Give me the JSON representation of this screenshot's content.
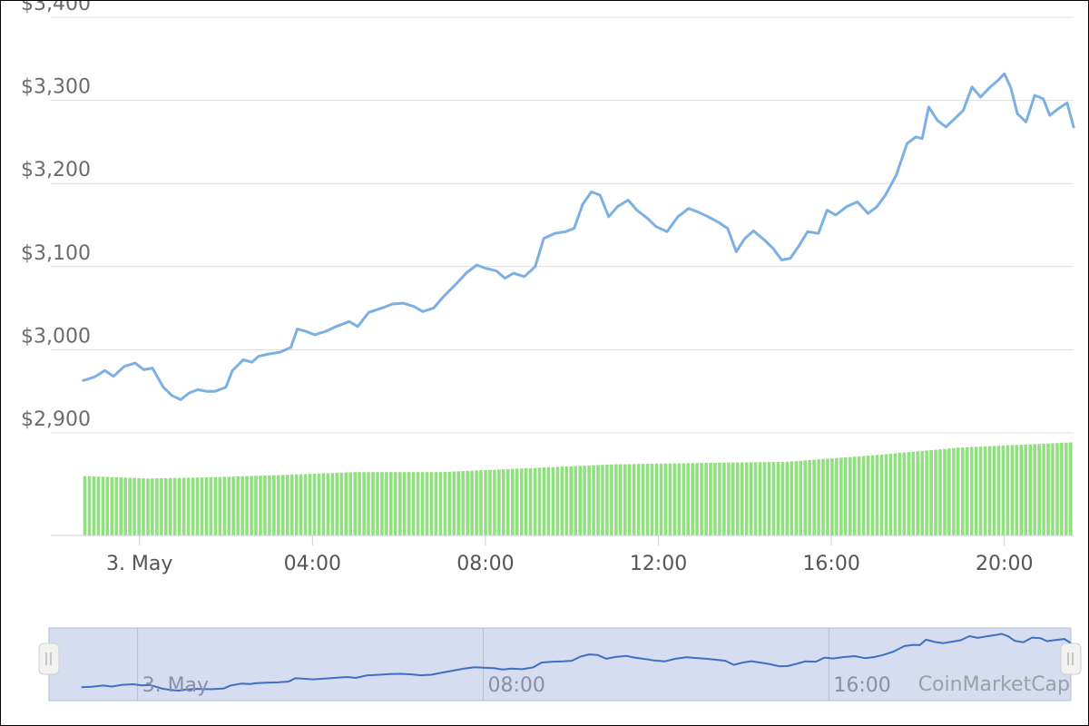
{
  "chart": {
    "credit": "CoinMarketCap"
  },
  "chart_data": {
    "type": "line",
    "title": "",
    "xlabel": "",
    "ylabel": "",
    "ylim": [
      2780,
      3420
    ],
    "yticks": [
      "$2,900",
      "$3,000",
      "$3,100",
      "$3,200",
      "$3,300",
      "$3,400"
    ],
    "ytick_values": [
      2900,
      3000,
      3100,
      3200,
      3300,
      3400
    ],
    "xlim_hours": [
      -2.05,
      21.6
    ],
    "xticks": [
      "3. May",
      "04:00",
      "08:00",
      "12:00",
      "16:00",
      "20:00"
    ],
    "xtick_hours": [
      0,
      4,
      8,
      12,
      16,
      20
    ],
    "grid": true,
    "series": [
      {
        "kind": "line",
        "color": "#7cb0e3",
        "points": [
          [
            -1.3,
            2963
          ],
          [
            -1.05,
            2967
          ],
          [
            -0.8,
            2975
          ],
          [
            -0.6,
            2968
          ],
          [
            -0.35,
            2980
          ],
          [
            -0.1,
            2984
          ],
          [
            0.1,
            2976
          ],
          [
            0.3,
            2978
          ],
          [
            0.55,
            2955
          ],
          [
            0.75,
            2945
          ],
          [
            0.95,
            2940
          ],
          [
            1.15,
            2948
          ],
          [
            1.35,
            2952
          ],
          [
            1.55,
            2950
          ],
          [
            1.75,
            2950
          ],
          [
            2.0,
            2955
          ],
          [
            2.15,
            2975
          ],
          [
            2.4,
            2988
          ],
          [
            2.6,
            2985
          ],
          [
            2.75,
            2992
          ],
          [
            3.0,
            2995
          ],
          [
            3.25,
            2997
          ],
          [
            3.5,
            3003
          ],
          [
            3.65,
            3025
          ],
          [
            3.85,
            3022
          ],
          [
            4.05,
            3018
          ],
          [
            4.3,
            3022
          ],
          [
            4.55,
            3028
          ],
          [
            4.85,
            3034
          ],
          [
            5.05,
            3028
          ],
          [
            5.3,
            3045
          ],
          [
            5.6,
            3050
          ],
          [
            5.85,
            3055
          ],
          [
            6.1,
            3056
          ],
          [
            6.35,
            3052
          ],
          [
            6.55,
            3046
          ],
          [
            6.8,
            3050
          ],
          [
            7.05,
            3065
          ],
          [
            7.3,
            3078
          ],
          [
            7.55,
            3092
          ],
          [
            7.8,
            3102
          ],
          [
            8.0,
            3098
          ],
          [
            8.25,
            3095
          ],
          [
            8.45,
            3086
          ],
          [
            8.65,
            3092
          ],
          [
            8.9,
            3088
          ],
          [
            9.15,
            3100
          ],
          [
            9.35,
            3134
          ],
          [
            9.6,
            3140
          ],
          [
            9.85,
            3142
          ],
          [
            10.05,
            3146
          ],
          [
            10.25,
            3175
          ],
          [
            10.45,
            3190
          ],
          [
            10.65,
            3186
          ],
          [
            10.85,
            3160
          ],
          [
            11.05,
            3172
          ],
          [
            11.3,
            3180
          ],
          [
            11.5,
            3168
          ],
          [
            11.75,
            3158
          ],
          [
            11.95,
            3148
          ],
          [
            12.2,
            3142
          ],
          [
            12.45,
            3160
          ],
          [
            12.7,
            3170
          ],
          [
            12.9,
            3166
          ],
          [
            13.15,
            3160
          ],
          [
            13.4,
            3153
          ],
          [
            13.6,
            3146
          ],
          [
            13.8,
            3118
          ],
          [
            14.0,
            3134
          ],
          [
            14.2,
            3143
          ],
          [
            14.45,
            3132
          ],
          [
            14.65,
            3122
          ],
          [
            14.85,
            3108
          ],
          [
            15.05,
            3110
          ],
          [
            15.25,
            3125
          ],
          [
            15.45,
            3142
          ],
          [
            15.7,
            3140
          ],
          [
            15.9,
            3168
          ],
          [
            16.1,
            3162
          ],
          [
            16.35,
            3172
          ],
          [
            16.6,
            3178
          ],
          [
            16.85,
            3164
          ],
          [
            17.05,
            3172
          ],
          [
            17.25,
            3186
          ],
          [
            17.5,
            3210
          ],
          [
            17.75,
            3248
          ],
          [
            17.95,
            3256
          ],
          [
            18.1,
            3254
          ],
          [
            18.25,
            3292
          ],
          [
            18.45,
            3276
          ],
          [
            18.65,
            3268
          ],
          [
            18.85,
            3278
          ],
          [
            19.05,
            3288
          ],
          [
            19.25,
            3316
          ],
          [
            19.45,
            3304
          ],
          [
            19.65,
            3315
          ],
          [
            19.85,
            3324
          ],
          [
            20.0,
            3332
          ],
          [
            20.15,
            3315
          ],
          [
            20.3,
            3284
          ],
          [
            20.5,
            3274
          ],
          [
            20.7,
            3306
          ],
          [
            20.9,
            3302
          ],
          [
            21.05,
            3282
          ],
          [
            21.25,
            3290
          ],
          [
            21.45,
            3297
          ],
          [
            21.6,
            3268
          ]
        ]
      },
      {
        "kind": "volume-bars",
        "color": "#90e07f",
        "bar_count": 220,
        "levels_hours": [
          [
            -1.3,
            0.46
          ],
          [
            0.2,
            0.44
          ],
          [
            1.7,
            0.45
          ],
          [
            3.5,
            0.47
          ],
          [
            5.0,
            0.49
          ],
          [
            7.0,
            0.49
          ],
          [
            9.0,
            0.52
          ],
          [
            11.0,
            0.55
          ],
          [
            13.0,
            0.56
          ],
          [
            15.0,
            0.57
          ],
          [
            17.0,
            0.62
          ],
          [
            19.0,
            0.68
          ],
          [
            21.6,
            0.72
          ]
        ]
      }
    ]
  },
  "navigator": {
    "ticks": [
      "3. May",
      "08:00",
      "16:00"
    ],
    "tick_hours": [
      0,
      8,
      16
    ]
  }
}
